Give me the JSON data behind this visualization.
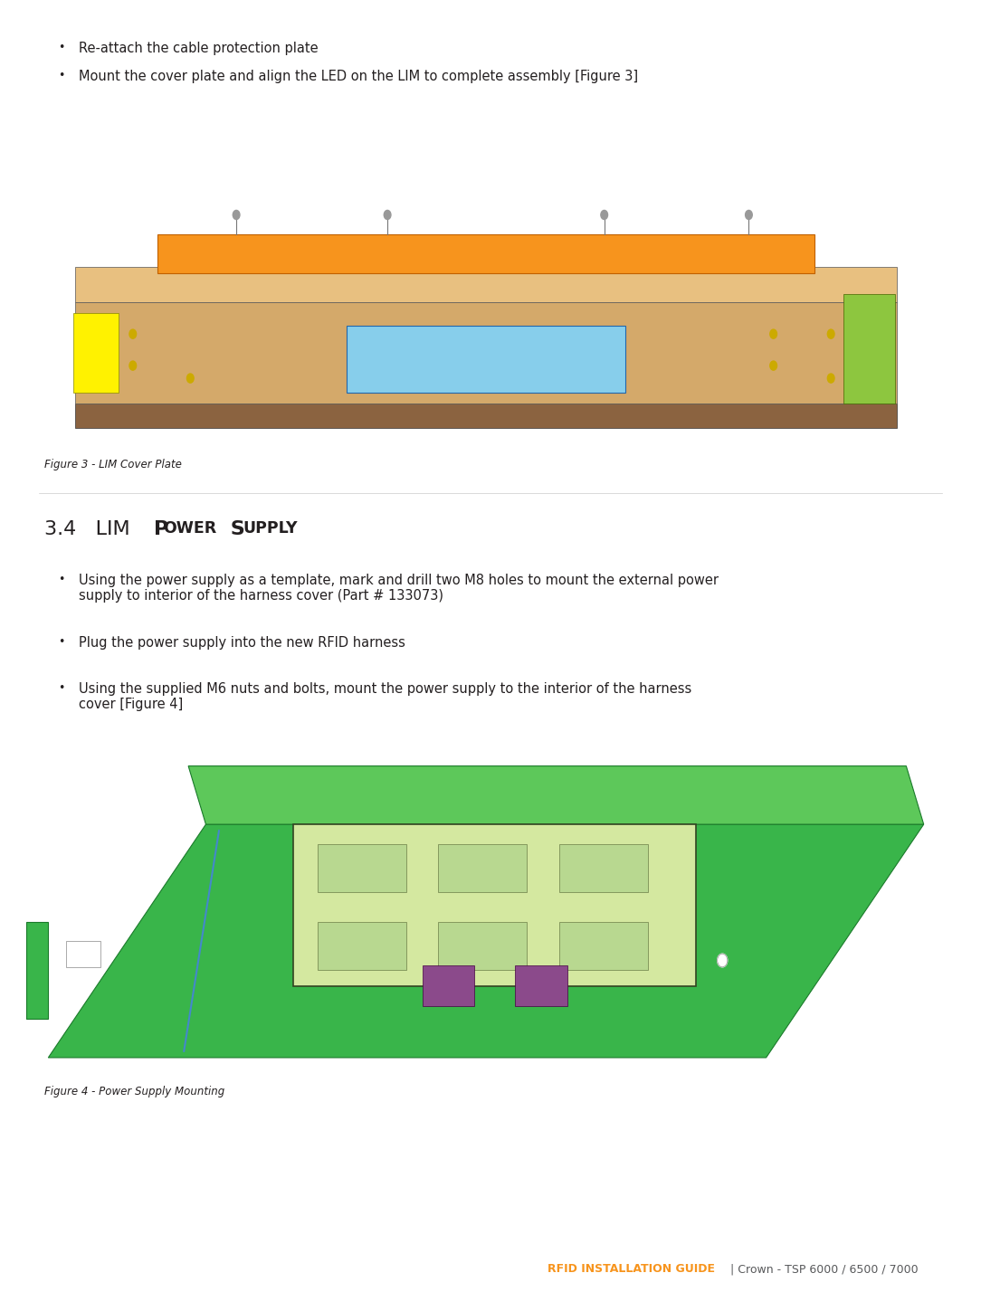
{
  "background_color": "#ffffff",
  "figsize": [
    10.84,
    14.28
  ],
  "dpi": 100,
  "bullet_points_top": [
    "Re-attach the cable protection plate",
    "Mount the cover plate and align the LED on the LIM to complete assembly [Figure 3]"
  ],
  "figure3_caption": "Figure 3 - LIM Cover Plate",
  "figure4_caption": "Figure 4 - Power Supply Mounting",
  "bullet_points_section": [
    "Using the power supply as a template, mark and drill two M8 holes to mount the external power\nsupply to interior of the harness cover (Part # 133073)",
    "Plug the power supply into the new RFID harness",
    "Using the supplied M6 nuts and bolts, mount the power supply to the interior of the harness\ncover [Figure 4]"
  ],
  "footer_text_orange": "RFID INSTALLATION GUIDE",
  "footer_text_gray": " | Crown - TSP 6000 / 6500 / 7000",
  "colors": {
    "orange": "#F7941D",
    "dark_gray": "#58595B",
    "black": "#231F20",
    "white": "#ffffff",
    "green_lim": "#8DC63F",
    "orange_plate": "#F7941D",
    "tan_body": "#D4A96A",
    "tan_top": "#E8C080",
    "blue_sensor": "#87CEEB",
    "yellow_corner": "#FFF200",
    "brown_base": "#8B6340",
    "green_supply": "#39B54A",
    "green_supply_top": "#5DC85A",
    "purple_connector": "#8B4A8B",
    "circuit_bg": "#D4E8A0",
    "circuit_detail": "#B8D890"
  }
}
